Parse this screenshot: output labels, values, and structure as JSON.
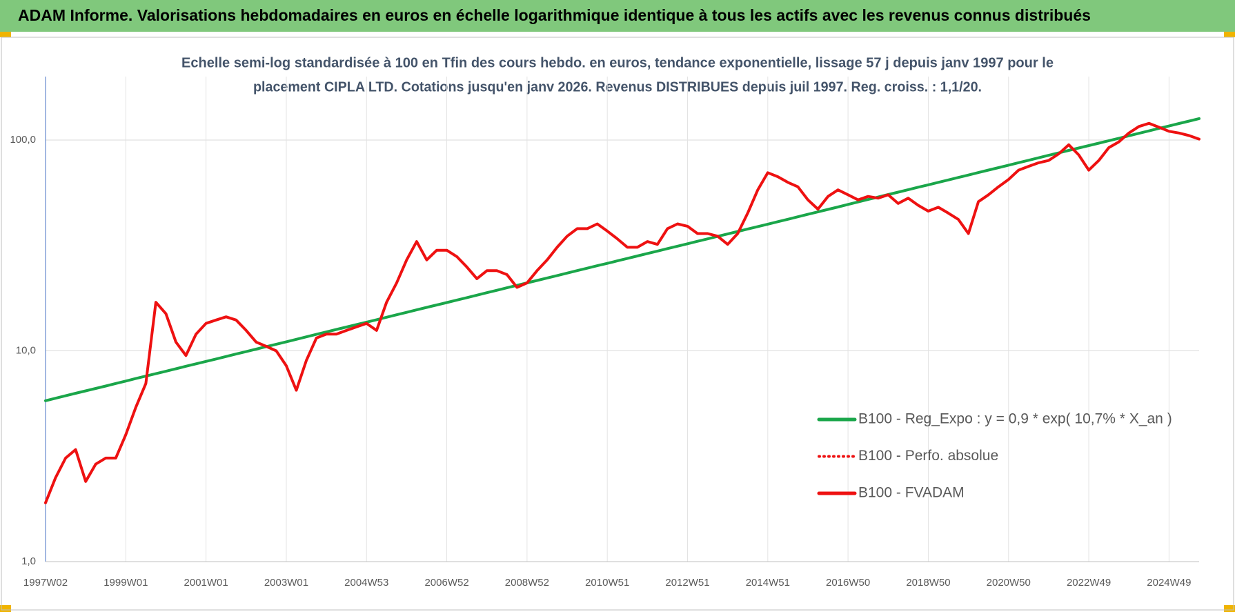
{
  "header": {
    "title": "ADAM Informe. Valorisations hebdomadaires en euros en échelle logarithmique identique à tous les actifs avec les revenus connus distribués"
  },
  "chart_data": {
    "type": "line",
    "title": [
      "Echelle semi-log standardisée à 100 en Tfin des cours hebdo. en euros, tendance exponentielle, lissage 57 j depuis janv 1997 pour le",
      "placement CIPLA LTD. Cotations jusqu'en janv 2026. Revenus DISTRIBUES depuis juil 1997. Reg. croiss. : 1,1/20."
    ],
    "categories": [
      "1997W02",
      null,
      null,
      null,
      null,
      null,
      null,
      null,
      "1999W01",
      null,
      null,
      null,
      null,
      null,
      null,
      null,
      "2001W01",
      null,
      null,
      null,
      null,
      null,
      null,
      null,
      "2003W01",
      null,
      null,
      null,
      null,
      null,
      null,
      null,
      "2004W53",
      null,
      null,
      null,
      null,
      null,
      null,
      null,
      "2006W52",
      null,
      null,
      null,
      null,
      null,
      null,
      null,
      "2008W52",
      null,
      null,
      null,
      null,
      null,
      null,
      null,
      "2010W51",
      null,
      null,
      null,
      null,
      null,
      null,
      null,
      "2012W51",
      null,
      null,
      null,
      null,
      null,
      null,
      null,
      "2014W51",
      null,
      null,
      null,
      null,
      null,
      null,
      null,
      "2016W50",
      null,
      null,
      null,
      null,
      null,
      null,
      null,
      "2018W50",
      null,
      null,
      null,
      null,
      null,
      null,
      null,
      "2020W50",
      null,
      null,
      null,
      null,
      null,
      null,
      null,
      "2022W49",
      null,
      null,
      null,
      null,
      null,
      null,
      null,
      "2024W49",
      null,
      null,
      null
    ],
    "log_y": true,
    "ylim": [
      1,
      200
    ],
    "yticks": [
      {
        "value": 1,
        "label": "1,0"
      },
      {
        "value": 10,
        "label": "10,0"
      },
      {
        "value": 100,
        "label": "100,0"
      }
    ],
    "grid": true,
    "legend": "lower right",
    "series": [
      {
        "name": "B100 - Reg_Expo : y = 0,9 * exp( 10,7% *  X_an )",
        "color": "#1aa64a",
        "style": "solid",
        "values": [
          5.8,
          5.96,
          6.12,
          6.29,
          6.46,
          6.63,
          6.81,
          7.0,
          7.19,
          7.39,
          7.59,
          7.79,
          8.0,
          8.22,
          8.45,
          8.68,
          8.91,
          9.15,
          9.4,
          9.66,
          9.92,
          10.19,
          10.47,
          10.75,
          11.04,
          11.34,
          11.65,
          11.97,
          12.29,
          12.63,
          12.97,
          13.32,
          13.68,
          14.05,
          14.43,
          14.83,
          15.23,
          15.64,
          16.07,
          16.51,
          16.95,
          17.41,
          17.88,
          18.37,
          18.87,
          19.38,
          19.91,
          20.45,
          21.0,
          21.57,
          22.16,
          22.76,
          23.38,
          24.02,
          24.67,
          25.34,
          26.0,
          26.71,
          27.43,
          28.18,
          28.95,
          29.73,
          30.54,
          31.37,
          32.2,
          33.08,
          33.97,
          34.9,
          35.85,
          36.82,
          37.83,
          38.85,
          39.9,
          40.99,
          42.1,
          43.24,
          44.42,
          45.63,
          46.87,
          48.14,
          49.5,
          50.85,
          52.23,
          53.65,
          55.11,
          56.61,
          58.15,
          59.73,
          61.3,
          62.97,
          64.68,
          66.44,
          68.25,
          70.1,
          72.01,
          73.96,
          76.0,
          78.07,
          80.19,
          82.37,
          84.61,
          86.91,
          89.28,
          91.7,
          94.1,
          96.66,
          99.28,
          101.99,
          104.76,
          107.61,
          110.54,
          113.54,
          116.6,
          119.77,
          123.03,
          126.37
        ]
      },
      {
        "name": "B100 - Perfo. absolue",
        "color": "#ee1111",
        "style": "dotted",
        "values": [
          1.9,
          2.5,
          3.1,
          3.4,
          2.4,
          2.9,
          3.1,
          3.1,
          4.0,
          5.4,
          7.0,
          17,
          15,
          11,
          9.5,
          12,
          13.5,
          14,
          14.5,
          14,
          12.5,
          11,
          10.5,
          10,
          8.5,
          6.5,
          9,
          11.5,
          12,
          12,
          12.5,
          13,
          13.5,
          12.5,
          17,
          21,
          27,
          33,
          27,
          30,
          30,
          28,
          25,
          22,
          24,
          24,
          23,
          20,
          21,
          24,
          27,
          31,
          35,
          38,
          38,
          40,
          37,
          34,
          31,
          31,
          33,
          32,
          38,
          40,
          39,
          36,
          36,
          35,
          32,
          36,
          45,
          58,
          70,
          67,
          63,
          60,
          52,
          47,
          54,
          58,
          55,
          52,
          54,
          53,
          55,
          50,
          53,
          49,
          46,
          48,
          45,
          42,
          36,
          51,
          55,
          60,
          65,
          72,
          75,
          78,
          80,
          86,
          95,
          85,
          72,
          80,
          92,
          98,
          108,
          116,
          120,
          115,
          110,
          108,
          105,
          101
        ]
      },
      {
        "name": "B100 - FVADAM",
        "color": "#ee1111",
        "style": "solid",
        "values": [
          1.9,
          2.5,
          3.1,
          3.4,
          2.4,
          2.9,
          3.1,
          3.1,
          4.0,
          5.4,
          7.0,
          17,
          15,
          11,
          9.5,
          12,
          13.5,
          14,
          14.5,
          14,
          12.5,
          11,
          10.5,
          10,
          8.5,
          6.5,
          9,
          11.5,
          12,
          12,
          12.5,
          13,
          13.5,
          12.5,
          17,
          21,
          27,
          33,
          27,
          30,
          30,
          28,
          25,
          22,
          24,
          24,
          23,
          20,
          21,
          24,
          27,
          31,
          35,
          38,
          38,
          40,
          37,
          34,
          31,
          31,
          33,
          32,
          38,
          40,
          39,
          36,
          36,
          35,
          32,
          36,
          45,
          58,
          70,
          67,
          63,
          60,
          52,
          47,
          54,
          58,
          55,
          52,
          54,
          53,
          55,
          50,
          53,
          49,
          46,
          48,
          45,
          42,
          36,
          51,
          55,
          60,
          65,
          72,
          75,
          78,
          80,
          86,
          95,
          85,
          72,
          80,
          92,
          98,
          108,
          116,
          120,
          115,
          110,
          108,
          105,
          101
        ]
      }
    ]
  }
}
